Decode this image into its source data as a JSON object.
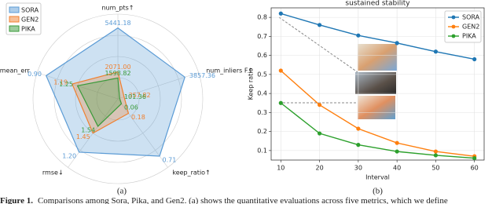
{
  "chart_data": [
    {
      "type": "radar",
      "panel_label": "(a)",
      "legend": "upper left",
      "axes": [
        {
          "label": "num_pts↑",
          "lim": [
            0,
            6500
          ]
        },
        {
          "label": "num_inliers F↑",
          "lim": [
            0,
            4650
          ]
        },
        {
          "label": "keep_ratio↑",
          "lim": [
            0,
            0.85
          ]
        },
        {
          "label": "rmse↓",
          "lim": [
            1.9,
            1.0
          ]
        },
        {
          "label": "mean_err",
          "lim": [
            1.7,
            0.8
          ]
        }
      ],
      "series": [
        {
          "name": "SORA",
          "color": "#5b9bd5",
          "values": [
            5441.18,
            3857.36,
            0.71,
            1.2,
            0.9
          ],
          "value_labels": [
            "5441.18",
            "3857.36",
            "0.71",
            "1.20",
            "0.90"
          ]
        },
        {
          "name": "GEN2",
          "color": "#f08030",
          "values": [
            2071.0,
            357.82,
            0.18,
            1.45,
            1.19
          ],
          "value_labels": [
            "2071.00",
            "357.82",
            "0.18",
            "1.45",
            "1.19"
          ]
        },
        {
          "name": "PIKA",
          "color": "#3a9a3a",
          "values": [
            1598.82,
            101.36,
            0.06,
            1.54,
            1.25
          ],
          "value_labels": [
            "1598.82",
            "101.36",
            "0.06",
            "1.54",
            "1.25"
          ]
        }
      ]
    },
    {
      "type": "line",
      "panel_label": "(b)",
      "title": "sustained stability",
      "xlabel": "Interval",
      "ylabel": "Keep ratio",
      "x": [
        10,
        20,
        30,
        40,
        50,
        60
      ],
      "series": [
        {
          "name": "SORA",
          "color": "#1f77b4",
          "values": [
            0.82,
            0.76,
            0.705,
            0.665,
            0.62,
            0.58
          ]
        },
        {
          "name": "GEN2",
          "color": "#ff7f0e",
          "values": [
            0.52,
            0.34,
            0.215,
            0.14,
            0.095,
            0.07
          ]
        },
        {
          "name": "PIKA",
          "color": "#2ca02c",
          "values": [
            0.35,
            0.19,
            0.13,
            0.095,
            0.075,
            0.06
          ]
        }
      ],
      "xlim": [
        7.5,
        62.5
      ],
      "ylim": [
        0.05,
        0.85
      ],
      "xticks": [
        10,
        20,
        30,
        40,
        50,
        60
      ],
      "yticks": [
        0.1,
        0.2,
        0.3,
        0.4,
        0.5,
        0.6,
        0.7,
        0.8
      ],
      "grid": true,
      "legend": "upper right"
    }
  ],
  "caption": {
    "figure": "Figure 1.",
    "text": "Comparisons among Sora, Pika, and Gen2. (a) shows the quantitative evaluations across five metrics, which we define"
  }
}
